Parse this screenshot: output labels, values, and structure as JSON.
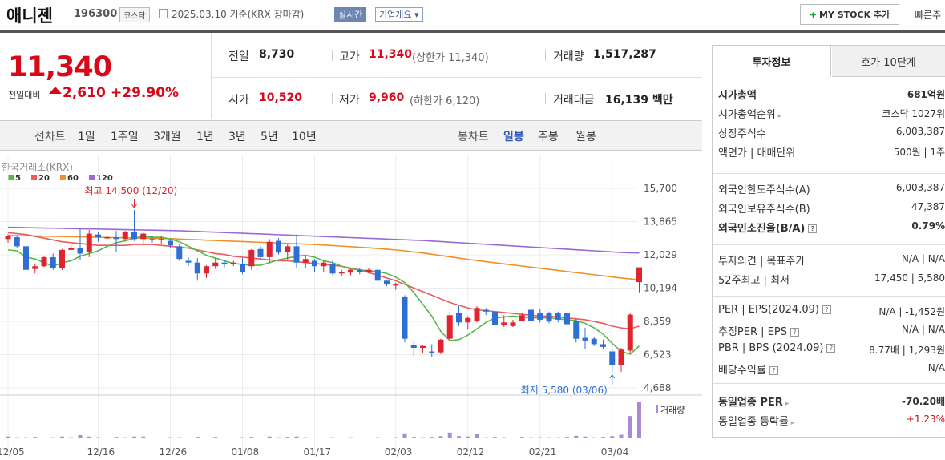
{
  "header": {
    "stock_name": "애니젠",
    "stock_code": "196300",
    "market": "코스닥",
    "date_text": "2025.03.10  기준(KRX  장마감)",
    "realtime": "실시간",
    "corp_info": "기업개요 ▾",
    "mystock": "MY STOCK 추가",
    "quick": "빠른주"
  },
  "price": {
    "current": "11,340",
    "change_label": "전일대비",
    "change": "2,610",
    "change_pct": "+29.90%",
    "prev_label": "전일",
    "prev": "8,730",
    "open_label": "시가",
    "open": "10,520",
    "high_label": "고가",
    "high": "11,340",
    "upper_limit": "(상한가 11,340)",
    "low_label": "저가",
    "low": "9,960",
    "lower_limit": "(하한가 6,120)",
    "volume_label": "거래량",
    "volume": "1,517,287",
    "amount_label": "거래대금",
    "amount": "16,139 백만"
  },
  "tabs": {
    "line_label": "선차트",
    "line": [
      "1일",
      "1주일",
      "3개월",
      "1년",
      "3년",
      "5년",
      "10년"
    ],
    "candle_label": "봉차트",
    "candle": [
      "일봉",
      "주봉",
      "월봉"
    ],
    "candle_active": "일봉"
  },
  "chart_data": {
    "type": "candlestick",
    "source": "한국거래소(KRX)",
    "ma_legend": [
      {
        "name": "5",
        "color": "#58b847"
      },
      {
        "name": "20",
        "color": "#ef5a5a"
      },
      {
        "name": "60",
        "color": "#f0902a"
      },
      {
        "name": "120",
        "color": "#9b6ad0"
      }
    ],
    "y_ticks": [
      15700,
      13865,
      12029,
      10194,
      8359,
      6523,
      4688
    ],
    "x_ticks": [
      "12/05",
      "12/16",
      "12/26",
      "01/08",
      "01/17",
      "02/03",
      "02/12",
      "02/21",
      "03/04"
    ],
    "max_annot": "최고 14,500 (12/20)",
    "min_annot": "최저 5,580 (03/06)",
    "volume_label": "거래량",
    "candles": [
      [
        12900,
        13150,
        12700,
        13050
      ],
      [
        13000,
        13050,
        12400,
        12500
      ],
      [
        12500,
        12600,
        10700,
        11200
      ],
      [
        11250,
        11500,
        11000,
        11400
      ],
      [
        11400,
        11950,
        11350,
        11900
      ],
      [
        11900,
        12100,
        11200,
        11300
      ],
      [
        11300,
        12350,
        11200,
        12300
      ],
      [
        12300,
        12550,
        12250,
        12400
      ],
      [
        12400,
        13450,
        11750,
        12100
      ],
      [
        12200,
        13400,
        11900,
        13200
      ],
      [
        13150,
        13300,
        12750,
        13000
      ],
      [
        13000,
        13050,
        12900,
        13000
      ],
      [
        13000,
        13350,
        12200,
        12900
      ],
      [
        12900,
        13350,
        12800,
        13300
      ],
      [
        13300,
        14500,
        12800,
        12900
      ],
      [
        12900,
        13300,
        12650,
        13200
      ],
      [
        12900,
        13050,
        12700,
        12850
      ],
      [
        12850,
        13050,
        12650,
        12900
      ],
      [
        12800,
        12900,
        12400,
        12550
      ],
      [
        12500,
        12600,
        11700,
        11800
      ],
      [
        11700,
        11900,
        11400,
        11600
      ],
      [
        11600,
        11850,
        10600,
        11000
      ],
      [
        11000,
        11450,
        10750,
        11400
      ],
      [
        11400,
        11850,
        11250,
        11600
      ],
      [
        11600,
        11750,
        11350,
        11550
      ],
      [
        11550,
        11700,
        11400,
        11600
      ],
      [
        11500,
        11850,
        10950,
        11100
      ],
      [
        11400,
        12350,
        11200,
        12300
      ],
      [
        12350,
        12500,
        11800,
        11900
      ],
      [
        11900,
        12900,
        11600,
        12750
      ],
      [
        12800,
        12950,
        12050,
        12150
      ],
      [
        12200,
        12600,
        11750,
        12500
      ],
      [
        12500,
        13150,
        11300,
        11600
      ],
      [
        11600,
        11950,
        11300,
        11800
      ],
      [
        11700,
        11800,
        11100,
        11400
      ],
      [
        11400,
        11700,
        11100,
        11600
      ],
      [
        11500,
        11700,
        10900,
        11000
      ],
      [
        11000,
        11200,
        10850,
        11100
      ],
      [
        11050,
        11250,
        10900,
        11200
      ],
      [
        11200,
        11300,
        10950,
        11100
      ],
      [
        11100,
        11300,
        11000,
        11200
      ],
      [
        11200,
        11300,
        10600,
        10600
      ],
      [
        10600,
        10650,
        10300,
        10400
      ],
      [
        10400,
        10500,
        10100,
        10400
      ],
      [
        9700,
        9800,
        7200,
        7400
      ],
      [
        7050,
        7300,
        6450,
        6900
      ],
      [
        6900,
        7050,
        6600,
        7000
      ],
      [
        6700,
        7100,
        6400,
        6650
      ],
      [
        6650,
        7400,
        6550,
        7350
      ],
      [
        7400,
        8900,
        7300,
        8700
      ],
      [
        8800,
        9200,
        8100,
        8300
      ],
      [
        8300,
        8650,
        7900,
        8550
      ],
      [
        8400,
        9200,
        8300,
        9100
      ],
      [
        9000,
        9100,
        8700,
        8900
      ],
      [
        8900,
        9000,
        8100,
        8150
      ],
      [
        8150,
        8700,
        8050,
        8300
      ],
      [
        8100,
        8450,
        8050,
        8300
      ],
      [
        8400,
        8800,
        8350,
        8700
      ],
      [
        9000,
        9050,
        8250,
        8400
      ],
      [
        8800,
        9050,
        8300,
        8450
      ],
      [
        8800,
        8900,
        8250,
        8350
      ],
      [
        8800,
        8900,
        8300,
        8450
      ],
      [
        8800,
        8850,
        8100,
        8200
      ],
      [
        8400,
        8500,
        7200,
        7400
      ],
      [
        7450,
        8000,
        6850,
        7300
      ],
      [
        7400,
        7500,
        7000,
        7100
      ],
      [
        7100,
        7350,
        6850,
        6950
      ],
      [
        6700,
        6800,
        5580,
        5950
      ],
      [
        5950,
        6900,
        5580,
        6800
      ],
      [
        6750,
        8800,
        6600,
        8730
      ],
      [
        10520,
        11340,
        9960,
        11340
      ]
    ],
    "ma5": [
      12300,
      12250,
      11900,
      11800,
      11600,
      11400,
      11600,
      11700,
      11950,
      12100,
      12250,
      12500,
      12700,
      12800,
      12950,
      13050,
      13000,
      13000,
      12900,
      12750,
      12500,
      12250,
      12000,
      11850,
      11700,
      11550,
      11500,
      11450,
      11450,
      11600,
      11750,
      11850,
      11950,
      12000,
      11900,
      11700,
      11600,
      11400,
      11250,
      11200,
      11150,
      11100,
      11000,
      10800,
      10500,
      9950,
      9300,
      8650,
      7800,
      7300,
      7350,
      7600,
      7950,
      8300,
      8550,
      8600,
      8650,
      8600,
      8550,
      8550,
      8550,
      8500,
      8450,
      8400,
      8250,
      8000,
      7650,
      7150,
      6700,
      6550,
      7000
    ],
    "ma20": [
      13250,
      13200,
      13150,
      13050,
      12950,
      12850,
      12750,
      12700,
      12650,
      12600,
      12550,
      12550,
      12550,
      12550,
      12600,
      12600,
      12600,
      12550,
      12500,
      12450,
      12400,
      12300,
      12200,
      12100,
      12050,
      11950,
      11900,
      11850,
      11800,
      11750,
      11700,
      11700,
      11650,
      11600,
      11550,
      11500,
      11450,
      11400,
      11300,
      11200,
      11050,
      10900,
      10750,
      10600,
      10400,
      10200,
      10000,
      9800,
      9600,
      9400,
      9250,
      9100,
      9000,
      8950,
      8900,
      8850,
      8800,
      8750,
      8700,
      8650,
      8650,
      8600,
      8550,
      8500,
      8450,
      8350,
      8250,
      8100,
      8000,
      7950,
      8100
    ],
    "ma60": [
      13100,
      13090,
      13080,
      13070,
      13060,
      13050,
      13040,
      13030,
      13020,
      13010,
      13000,
      12990,
      12980,
      12970,
      12960,
      12950,
      12940,
      12930,
      12920,
      12900,
      12880,
      12860,
      12840,
      12820,
      12800,
      12780,
      12760,
      12740,
      12720,
      12700,
      12680,
      12660,
      12640,
      12620,
      12600,
      12570,
      12540,
      12510,
      12480,
      12450,
      12420,
      12380,
      12340,
      12300,
      12250,
      12190,
      12130,
      12060,
      11990,
      11920,
      11850,
      11780,
      11710,
      11650,
      11590,
      11530,
      11470,
      11410,
      11350,
      11290,
      11230,
      11170,
      11110,
      11050,
      10990,
      10930,
      10870,
      10810,
      10750,
      10700,
      10650
    ],
    "ma120": [
      13550,
      13540,
      13530,
      13520,
      13510,
      13500,
      13490,
      13480,
      13470,
      13460,
      13450,
      13440,
      13430,
      13420,
      13410,
      13400,
      13390,
      13380,
      13370,
      13360,
      13340,
      13320,
      13300,
      13280,
      13260,
      13240,
      13220,
      13200,
      13180,
      13160,
      13140,
      13120,
      13100,
      13080,
      13060,
      13040,
      13020,
      13000,
      12980,
      12960,
      12940,
      12920,
      12900,
      12880,
      12860,
      12840,
      12820,
      12790,
      12760,
      12730,
      12700,
      12670,
      12640,
      12610,
      12580,
      12550,
      12520,
      12490,
      12460,
      12430,
      12400,
      12370,
      12340,
      12310,
      12280,
      12250,
      12220,
      12190,
      12160,
      12140,
      12130
    ],
    "volume": [
      0.05,
      0.03,
      0.03,
      0.04,
      0.02,
      0.03,
      0.05,
      0.03,
      0.09,
      0.05,
      0.03,
      0.02,
      0.04,
      0.03,
      0.05,
      0.05,
      0.02,
      0.02,
      0.03,
      0.03,
      0.02,
      0.04,
      0.02,
      0.04,
      0.02,
      0.02,
      0.03,
      0.04,
      0.02,
      0.05,
      0.03,
      0.04,
      0.05,
      0.03,
      0.02,
      0.02,
      0.03,
      0.02,
      0.03,
      0.02,
      0.02,
      0.03,
      0.02,
      0.03,
      0.14,
      0.04,
      0.03,
      0.04,
      0.06,
      0.16,
      0.06,
      0.05,
      0.13,
      0.03,
      0.04,
      0.03,
      0.02,
      0.04,
      0.03,
      0.03,
      0.03,
      0.03,
      0.04,
      0.07,
      0.05,
      0.03,
      0.04,
      0.06,
      0.1,
      0.62,
      1.0
    ]
  },
  "info": {
    "tab1": "투자정보",
    "tab2": "호가 10단계",
    "rows1": [
      {
        "label": "시가총액",
        "value": "681억원",
        "bold": true
      },
      {
        "label": "시가총액순위",
        "value": "코스닥 1027위",
        "arrow": true
      },
      {
        "label": "상장주식수",
        "value": "6,003,387"
      },
      {
        "label": "액면가 | 매매단위",
        "value": "500원 | 1주"
      }
    ],
    "rows2": [
      {
        "label": "외국인한도주식수(A)",
        "value": "6,003,387"
      },
      {
        "label": "외국인보유주식수(B)",
        "value": "47,387"
      },
      {
        "label": "외국인소진율(B/A)",
        "value": "0.79%",
        "bold": true,
        "q": true
      }
    ],
    "rows3": [
      {
        "label": "투자의견 | 목표주가",
        "value": "N/A | N/A"
      },
      {
        "label": "52주최고 | 최저",
        "value": "17,450 | 5,580"
      }
    ],
    "rows4": [
      {
        "label": "PER | EPS(2024.09)",
        "value": "N/A | -1,452원",
        "q": true
      },
      {
        "label": "추정PER | EPS",
        "value": "N/A | N/A",
        "q": true
      },
      {
        "label": "PBR | BPS (2024.09)",
        "value": "8.77배 | 1,293원",
        "q": true
      },
      {
        "label": "배당수익률",
        "value": "N/A",
        "q": true
      }
    ],
    "rows5": [
      {
        "label": "동일업종 PER",
        "value": "-70.20배",
        "bold": true,
        "arrow": true
      },
      {
        "label": "동일업종 등락률",
        "value": "+1.23%",
        "arrow": true,
        "red": true
      }
    ]
  }
}
